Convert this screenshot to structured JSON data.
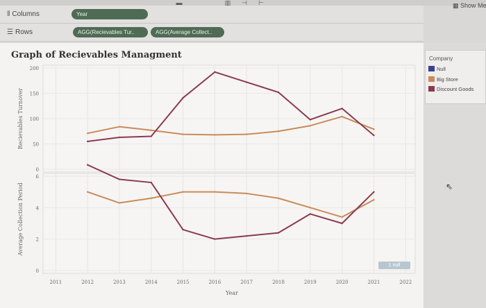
{
  "toolbar": {
    "show_me_label": "Show Me"
  },
  "shelves": {
    "columns": {
      "label": "Columns",
      "pills": [
        "Year"
      ]
    },
    "rows": {
      "label": "Rows",
      "pills": [
        "AGG(Recievables Tur..",
        "AGG(Average Collect.."
      ]
    }
  },
  "worksheet": {
    "title": "Graph of Recievables Managment"
  },
  "legend": {
    "title": "Company",
    "items": [
      {
        "label": "Null",
        "color": "#3d3f8f"
      },
      {
        "label": "Big Store",
        "color": "#c98b5a"
      },
      {
        "label": "Discount Goods",
        "color": "#8a3a4e"
      }
    ]
  },
  "null_indicator": "1 null",
  "chart_data": [
    {
      "type": "line",
      "ylabel": "Recievables Turnover",
      "ylim": [
        0,
        200
      ],
      "yticks": [
        0,
        50,
        100,
        150,
        200
      ],
      "x": [
        2012,
        2013,
        2014,
        2015,
        2016,
        2017,
        2018,
        2019,
        2020,
        2021
      ],
      "series": [
        {
          "name": "Big Store",
          "color": "#c98b5a",
          "values": [
            71,
            84,
            77,
            69,
            68,
            69,
            75,
            86,
            104,
            79
          ]
        },
        {
          "name": "Discount Goods",
          "color": "#8a3a4e",
          "values": [
            55,
            63,
            65,
            141,
            192,
            172,
            152,
            98,
            120,
            67
          ]
        }
      ]
    },
    {
      "type": "line",
      "ylabel": "Average Collection Period",
      "xlabel": "Year",
      "ylim": [
        0,
        6
      ],
      "yticks": [
        0,
        2,
        4,
        6
      ],
      "xticks": [
        "2011",
        "2012",
        "2013",
        "2014",
        "2015",
        "2016",
        "2017",
        "2018",
        "2019",
        "2020",
        "2021",
        "2022"
      ],
      "x": [
        2012,
        2013,
        2014,
        2015,
        2016,
        2017,
        2018,
        2019,
        2020,
        2021
      ],
      "series": [
        {
          "name": "Big Store",
          "color": "#c98b5a",
          "values": [
            5.0,
            4.3,
            4.6,
            5.0,
            5.0,
            4.9,
            4.6,
            4.0,
            3.4,
            4.5
          ]
        },
        {
          "name": "Discount Goods",
          "color": "#8a3a4e",
          "values": [
            6.8,
            5.8,
            5.6,
            2.6,
            2.0,
            2.2,
            2.4,
            3.6,
            3.0,
            5.0
          ]
        }
      ]
    }
  ]
}
